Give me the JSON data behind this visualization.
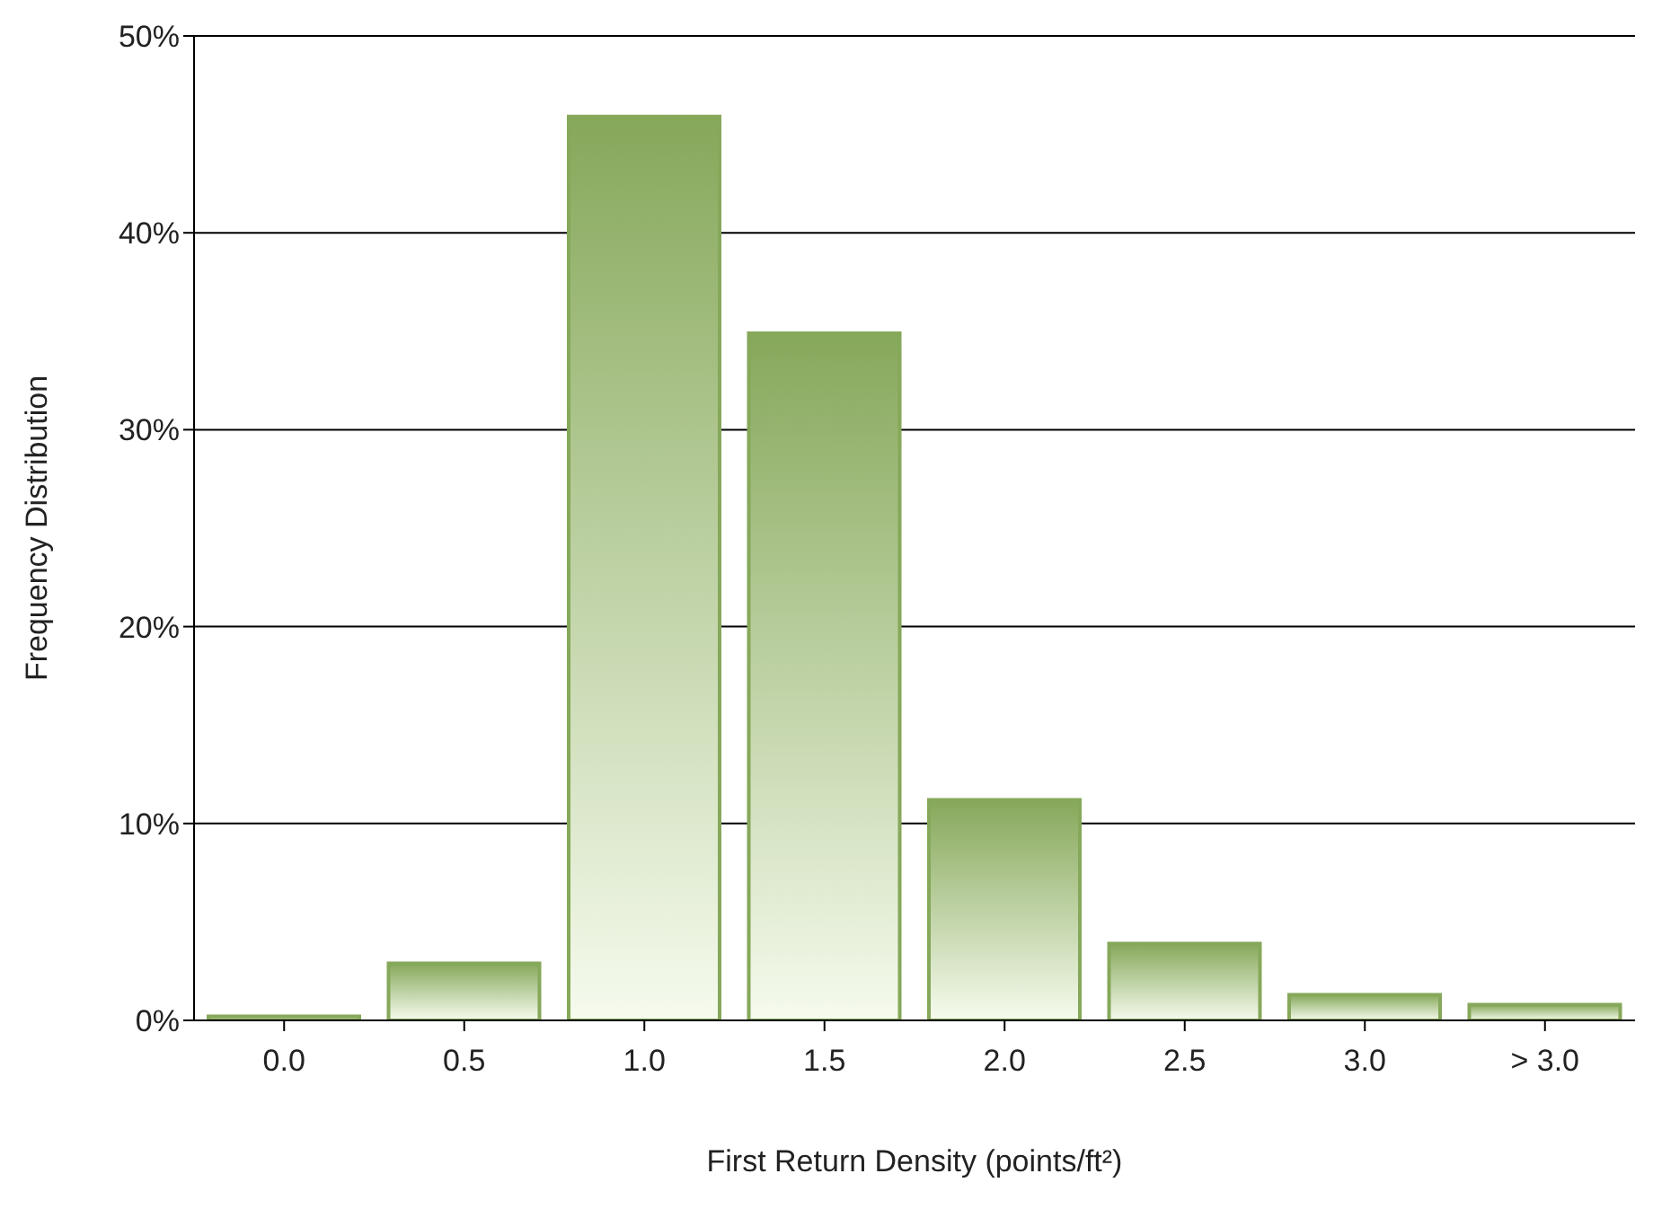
{
  "chart_data": {
    "type": "bar",
    "xlabel": "First Return Density (points/ft²)",
    "ylabel": "Frequency Distribution",
    "categories": [
      "0.0",
      "0.5",
      "1.0",
      "1.5",
      "2.0",
      "2.5",
      "3.0",
      "> 3.0"
    ],
    "values": [
      0.2,
      2.9,
      45.9,
      34.9,
      11.2,
      3.9,
      1.3,
      0.8
    ],
    "color": "#86a85a",
    "ylim": [
      0,
      50
    ],
    "yticks": [
      {
        "value": 0,
        "label": "0%"
      },
      {
        "value": 10,
        "label": "10%"
      },
      {
        "value": 20,
        "label": "20%"
      },
      {
        "value": 30,
        "label": "30%"
      },
      {
        "value": 40,
        "label": "40%"
      },
      {
        "value": 50,
        "label": "50%"
      }
    ],
    "grid": "y",
    "legend": false
  }
}
